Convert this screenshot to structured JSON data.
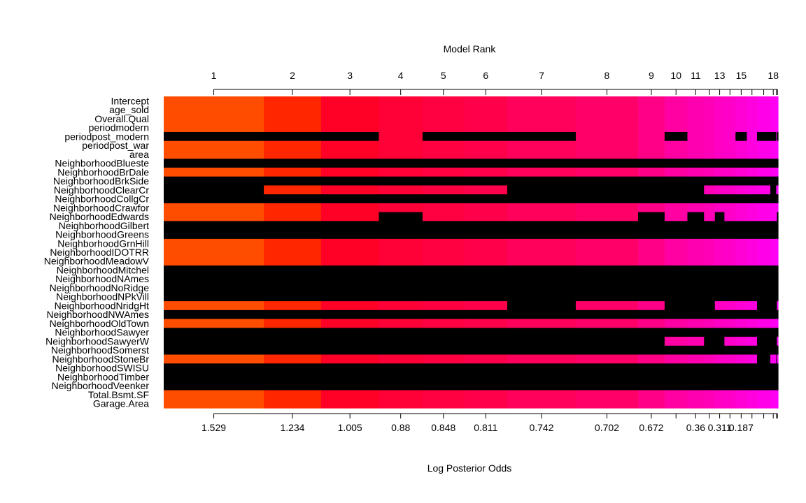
{
  "chart_data": {
    "type": "heatmap",
    "title": "",
    "top_axis_label": "Model Rank",
    "bottom_axis_label": "Log Posterior Odds",
    "top_tick_labels": [
      {
        "model": 1,
        "label": "1"
      },
      {
        "model": 2,
        "label": "2"
      },
      {
        "model": 3,
        "label": "3"
      },
      {
        "model": 4,
        "label": "4"
      },
      {
        "model": 5,
        "label": "5"
      },
      {
        "model": 6,
        "label": "6"
      },
      {
        "model": 7,
        "label": "7"
      },
      {
        "model": 8,
        "label": "8"
      },
      {
        "model": 9,
        "label": "9"
      },
      {
        "model": 10,
        "label": "10"
      },
      {
        "model": 11,
        "label": "11"
      },
      {
        "model": 13,
        "label": "13"
      },
      {
        "model": 15,
        "label": "15"
      },
      {
        "model": 18,
        "label": "18"
      }
    ],
    "top_minor_ticks": [
      12,
      14,
      16,
      17,
      19,
      20
    ],
    "bottom_tick_labels": [
      {
        "model": 1,
        "label": "1.529"
      },
      {
        "model": 2,
        "label": "1.234"
      },
      {
        "model": 3,
        "label": "1.005"
      },
      {
        "model": 4,
        "label": "0.88"
      },
      {
        "model": 5,
        "label": "0.848"
      },
      {
        "model": 6,
        "label": "0.811"
      },
      {
        "model": 7,
        "label": "0.742"
      },
      {
        "model": 8,
        "label": "0.702"
      },
      {
        "model": 9,
        "label": "0.672"
      },
      {
        "model": 11,
        "label": "0.36"
      },
      {
        "model": 13,
        "label": "0.311"
      },
      {
        "model": 15,
        "label": "0.187"
      }
    ],
    "bottom_minor_ticks": [
      10,
      12,
      14,
      16,
      17,
      18,
      19,
      20
    ],
    "variables": [
      "Intercept",
      "age_sold",
      "Overall.Qual",
      "periodmodern",
      "periodpost_modern",
      "periodpost_war",
      "area",
      "NeighborhoodBlueste",
      "NeighborhoodBrDale",
      "NeighborhoodBrkSide",
      "NeighborhoodClearCr",
      "NeighborhoodCollgCr",
      "NeighborhoodCrawfor",
      "NeighborhoodEdwards",
      "NeighborhoodGilbert",
      "NeighborhoodGreens",
      "NeighborhoodGrnHill",
      "NeighborhoodIDOTRR",
      "NeighborhoodMeadowV",
      "NeighborhoodMitchel",
      "NeighborhoodNAmes",
      "NeighborhoodNoRidge",
      "NeighborhoodNPkVill",
      "NeighborhoodNridgHt",
      "NeighborhoodNWAmes",
      "NeighborhoodOldTown",
      "NeighborhoodSawyer",
      "NeighborhoodSawyerW",
      "NeighborhoodSomerst",
      "NeighborhoodStoneBr",
      "NeighborhoodSWISU",
      "NeighborhoodTimber",
      "NeighborhoodVeenker",
      "Total.Bsmt.SF",
      "Garage.Area"
    ],
    "model_boundaries": [
      0,
      1.529,
      2.403,
      3.286,
      3.953,
      4.591,
      5.247,
      6.294,
      7.245,
      7.651,
      7.999,
      8.253,
      8.419,
      8.564,
      8.734,
      8.907,
      9.063,
      9.266,
      9.355,
      9.366,
      9.383
    ],
    "model_colors": [
      "#FF4D00",
      "#FF2600",
      "#FF0026",
      "#FF0037",
      "#FF0041",
      "#FF004B",
      "#FF005A",
      "#FF0069",
      "#FF0086",
      "#FF00A2",
      "#FF00B0",
      "#FF00B9",
      "#FF00C4",
      "#FF00C9",
      "#FF00D5",
      "#FF00DE",
      "#FF00E8",
      "#FF00F0",
      "#FF00F8",
      "#FF00FF"
    ],
    "excluded_color": "#000000",
    "inclusion": [
      "11111111111111111111",
      "11111111111111111111",
      "11111111111111111111",
      "11111111111111111111",
      "00010001101111010010",
      "11111111111111111111",
      "11111111111111111111",
      "00000000000000000000",
      "11111111111111111111",
      "00000000000000000000",
      "01111100000111111011",
      "00000000000000000000",
      "11111111111111111111",
      "11101111010101111110",
      "00000000000000000000",
      "00000000000000000000",
      "11111111111111111111",
      "11111111111111111111",
      "11111111111111111111",
      "00000000000000000000",
      "00000000000000000000",
      "00000000000000000000",
      "00000000000000000000",
      "11111101100011110001",
      "00000000000000000000",
      "11111111111111111111",
      "00000000000000000000",
      "00000000011001110001",
      "00000000000000000000",
      "11111111111111110101",
      "00000000000000000000",
      "00000000000000000000",
      "00000000000000000000",
      "11111111111111111111",
      "11111111111111111111"
    ]
  }
}
